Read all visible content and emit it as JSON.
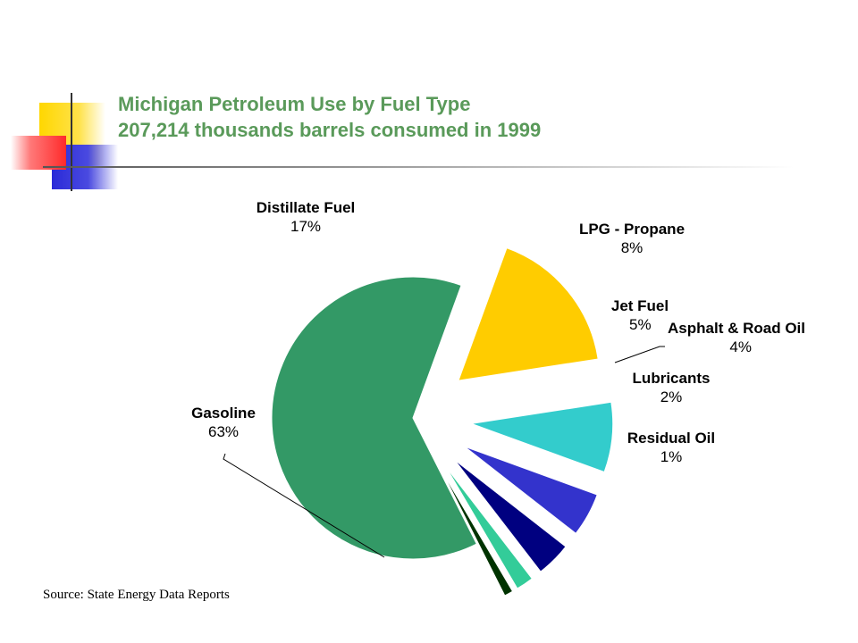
{
  "title": {
    "line1": "Michigan Petroleum Use by Fuel Type",
    "line2": "207,214 thousands barrels consumed in 1999"
  },
  "source": "Source: State Energy Data Reports",
  "chart_data": {
    "type": "pie",
    "title": "",
    "start_angle_deg": 20,
    "slices": [
      {
        "name": "Distillate Fuel",
        "value": 17,
        "label": "17%",
        "color": "#ffcc00"
      },
      {
        "name": "LPG - Propane",
        "value": 8,
        "label": "8%",
        "color": "#33cccc"
      },
      {
        "name": "Jet Fuel",
        "value": 5,
        "label": "5%",
        "color": "#3333cc"
      },
      {
        "name": "Asphalt & Road Oil",
        "value": 4,
        "label": "4%",
        "color": "#000080"
      },
      {
        "name": "Lubricants",
        "value": 2,
        "label": "2%",
        "color": "#33cc99"
      },
      {
        "name": "Residual Oil",
        "value": 1,
        "label": "1%",
        "color": "#003300"
      },
      {
        "name": "Gasoline",
        "value": 63,
        "label": "63%",
        "color": "#339966"
      }
    ]
  }
}
